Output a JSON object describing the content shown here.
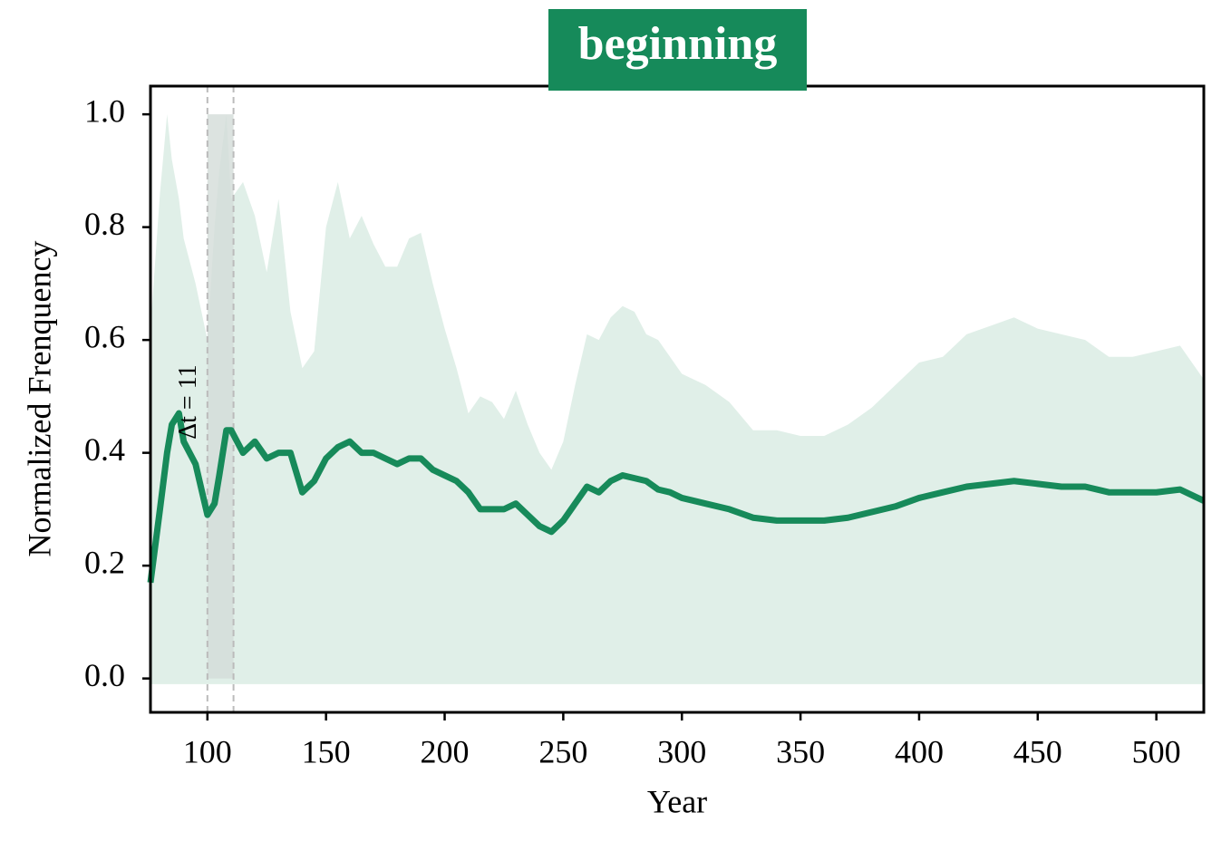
{
  "chart_data": {
    "type": "line",
    "title": "beginning",
    "xlabel": "Year",
    "ylabel": "Normalized Frenquency",
    "x": [
      76,
      80,
      83,
      85,
      88,
      90,
      95,
      100,
      103,
      105,
      108,
      110,
      115,
      120,
      125,
      130,
      135,
      140,
      145,
      150,
      155,
      160,
      165,
      170,
      175,
      180,
      185,
      190,
      195,
      200,
      205,
      210,
      215,
      220,
      225,
      230,
      235,
      240,
      245,
      250,
      255,
      260,
      265,
      270,
      275,
      280,
      285,
      290,
      295,
      300,
      310,
      320,
      330,
      340,
      350,
      360,
      370,
      380,
      390,
      400,
      410,
      420,
      430,
      440,
      450,
      460,
      470,
      480,
      490,
      500,
      510,
      520
    ],
    "values": [
      0.17,
      0.3,
      0.4,
      0.45,
      0.47,
      0.42,
      0.38,
      0.29,
      0.31,
      0.36,
      0.44,
      0.44,
      0.4,
      0.42,
      0.39,
      0.4,
      0.4,
      0.33,
      0.35,
      0.39,
      0.41,
      0.42,
      0.4,
      0.4,
      0.39,
      0.38,
      0.39,
      0.39,
      0.37,
      0.36,
      0.35,
      0.33,
      0.3,
      0.3,
      0.3,
      0.31,
      0.29,
      0.27,
      0.26,
      0.28,
      0.31,
      0.34,
      0.33,
      0.35,
      0.36,
      0.355,
      0.35,
      0.335,
      0.33,
      0.32,
      0.31,
      0.3,
      0.285,
      0.28,
      0.28,
      0.28,
      0.285,
      0.295,
      0.305,
      0.32,
      0.33,
      0.34,
      0.345,
      0.35,
      0.345,
      0.34,
      0.34,
      0.33,
      0.33,
      0.33,
      0.335,
      0.315
    ],
    "band_upper": [
      0.62,
      0.86,
      1.0,
      0.92,
      0.85,
      0.78,
      0.7,
      0.6,
      0.8,
      0.9,
      1.0,
      0.85,
      0.88,
      0.82,
      0.72,
      0.85,
      0.65,
      0.55,
      0.58,
      0.8,
      0.88,
      0.78,
      0.82,
      0.77,
      0.73,
      0.73,
      0.78,
      0.79,
      0.7,
      0.62,
      0.55,
      0.47,
      0.5,
      0.49,
      0.46,
      0.51,
      0.45,
      0.4,
      0.37,
      0.42,
      0.52,
      0.61,
      0.6,
      0.64,
      0.66,
      0.65,
      0.61,
      0.6,
      0.57,
      0.54,
      0.52,
      0.49,
      0.44,
      0.44,
      0.43,
      0.43,
      0.45,
      0.48,
      0.52,
      0.56,
      0.57,
      0.61,
      0.625,
      0.64,
      0.62,
      0.61,
      0.6,
      0.57,
      0.57,
      0.58,
      0.59,
      0.53
    ],
    "band_lower": -0.01,
    "color": "#178a5a",
    "band_color": "#e0efe8",
    "title_color": "#168a5a",
    "span": [
      100,
      111
    ],
    "span_ylim": [
      0,
      1.0
    ],
    "span_color": "#d3dcd8",
    "annotation": "Δt = 11",
    "xlim": [
      76,
      520
    ],
    "ylim": [
      -0.06,
      1.05
    ],
    "xticks": [
      100,
      150,
      200,
      250,
      300,
      350,
      400,
      450,
      500
    ],
    "yticks": [
      {
        "value": 0,
        "label": "0.0"
      },
      {
        "value": 0.2,
        "label": "0.2"
      },
      {
        "value": 0.4,
        "label": "0.4"
      },
      {
        "value": 0.6,
        "label": "0.6"
      },
      {
        "value": 0.8,
        "label": "0.8"
      },
      {
        "value": 1.0,
        "label": "1.0"
      }
    ]
  }
}
